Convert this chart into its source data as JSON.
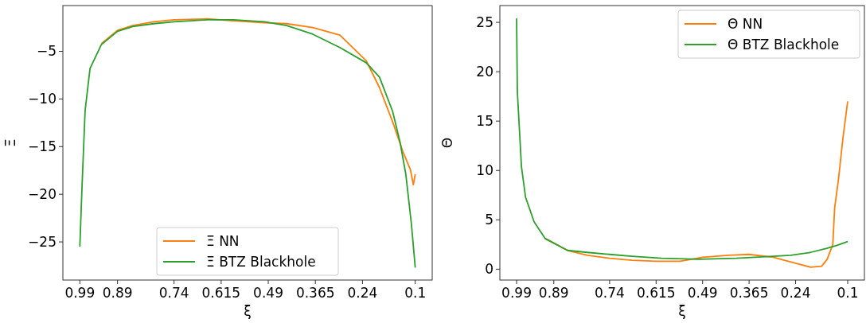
{
  "chart_data": [
    {
      "type": "line",
      "xlabel": "ξ",
      "ylabel": "Ξ",
      "xlim": [
        1.035,
        0.055
      ],
      "ylim": [
        -29.0,
        -0.2
      ],
      "xticks": [
        0.99,
        0.89,
        0.74,
        0.615,
        0.49,
        0.365,
        0.24,
        0.1
      ],
      "yticks": [
        {
          "value": -5,
          "label": "−5"
        },
        {
          "value": -10,
          "label": "−10"
        },
        {
          "value": -15,
          "label": "−15"
        },
        {
          "value": -20,
          "label": "−20"
        },
        {
          "value": -25,
          "label": "−25"
        }
      ],
      "grid": false,
      "legend": "bottom",
      "line_style": "solid",
      "series": [
        {
          "name": "Ξ NN",
          "color": "#ff7f0e",
          "x": [
            0.933,
            0.89,
            0.85,
            0.794,
            0.74,
            0.652,
            0.583,
            0.5,
            0.441,
            0.372,
            0.3,
            0.23,
            0.195,
            0.16,
            0.133,
            0.113,
            0.105,
            0.1
          ],
          "values": [
            -4.2,
            -2.8,
            -2.3,
            -1.9,
            -1.7,
            -1.6,
            -1.8,
            -2.0,
            -2.1,
            -2.5,
            -3.3,
            -6.0,
            -8.8,
            -12.4,
            -15.5,
            -17.4,
            -19.0,
            -17.9
          ]
        },
        {
          "name": "Ξ BTZ Blackhole",
          "color": "#2ca02c",
          "x": [
            0.99,
            0.984,
            0.976,
            0.963,
            0.933,
            0.89,
            0.85,
            0.794,
            0.74,
            0.652,
            0.583,
            0.5,
            0.441,
            0.372,
            0.3,
            0.23,
            0.195,
            0.16,
            0.14,
            0.125,
            0.11,
            0.1
          ],
          "values": [
            -25.5,
            -19,
            -11.2,
            -6.8,
            -4.3,
            -2.9,
            -2.4,
            -2.1,
            -1.9,
            -1.7,
            -1.7,
            -1.9,
            -2.3,
            -3.2,
            -4.6,
            -6.2,
            -7.7,
            -11.3,
            -14.6,
            -17.9,
            -23.2,
            -27.7
          ]
        }
      ]
    },
    {
      "type": "line",
      "xlabel": "ξ",
      "ylabel": "Θ",
      "xlim": [
        1.035,
        0.055
      ],
      "ylim": [
        -1.1,
        26.7
      ],
      "xticks": [
        0.99,
        0.89,
        0.74,
        0.615,
        0.49,
        0.365,
        0.24,
        0.1
      ],
      "yticks": [
        0,
        5,
        10,
        15,
        20,
        25
      ],
      "grid": false,
      "legend": "top right",
      "line_style": "solid",
      "series": [
        {
          "name": "Θ NN",
          "color": "#ff7f0e",
          "x": [
            0.913,
            0.853,
            0.8,
            0.74,
            0.68,
            0.615,
            0.55,
            0.49,
            0.42,
            0.365,
            0.3,
            0.24,
            0.2,
            0.17,
            0.155,
            0.14,
            0.135,
            0.125,
            0.113,
            0.1
          ],
          "values": [
            3.1,
            1.9,
            1.4,
            1.1,
            0.9,
            0.8,
            0.8,
            1.2,
            1.4,
            1.5,
            1.2,
            0.6,
            0.2,
            0.3,
            1.0,
            2.5,
            6.2,
            9,
            13.2,
            17
          ]
        },
        {
          "name": "Θ BTZ Blackhole",
          "color": "#2ca02c",
          "x": [
            0.99,
            0.988,
            0.977,
            0.966,
            0.943,
            0.913,
            0.853,
            0.8,
            0.74,
            0.68,
            0.6,
            0.5,
            0.4,
            0.3,
            0.253,
            0.2,
            0.158,
            0.13,
            0.1
          ],
          "values": [
            25.4,
            18,
            10.4,
            7.3,
            4.8,
            3.1,
            1.9,
            1.7,
            1.5,
            1.3,
            1.1,
            1.0,
            1.1,
            1.3,
            1.4,
            1.7,
            2.1,
            2.4,
            2.8
          ]
        }
      ]
    }
  ]
}
